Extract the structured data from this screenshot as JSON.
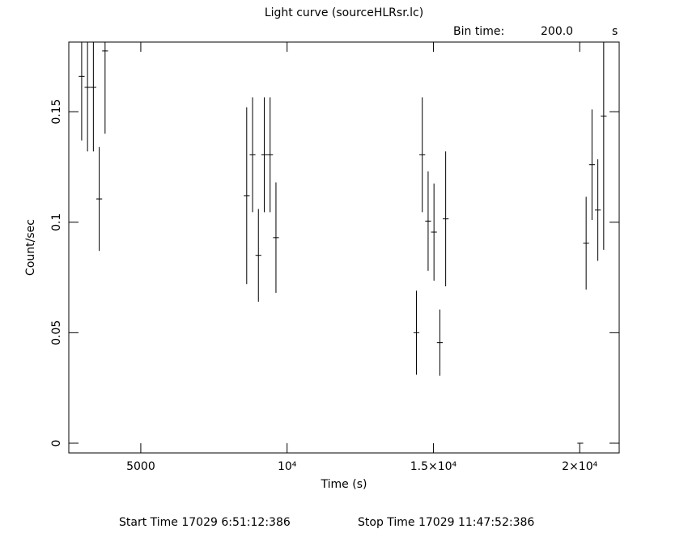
{
  "chart_data": {
    "type": "errorbar",
    "title": "Light curve (sourceHLRsr.lc)",
    "bin_time_label": "Bin time:",
    "bin_time": "200.0",
    "bin_time_unit": "s",
    "x_label": "Time (s)",
    "y_label": "Count/sec",
    "footer_start": "Start Time 17029  6:51:12:386",
    "footer_stop": "Stop Time 17029 11:47:52:386",
    "color": "#000000",
    "x_error": 100,
    "x": [
      2980,
      3180,
      3380,
      3580,
      3780,
      8620,
      8820,
      9020,
      9220,
      9420,
      9620,
      14420,
      14620,
      14820,
      15020,
      15220,
      15420,
      20020,
      20220,
      20420,
      20620,
      20820
    ],
    "values": [
      0.166,
      0.161,
      0.161,
      0.1105,
      0.1775,
      0.112,
      0.1305,
      0.085,
      0.1305,
      0.1305,
      0.093,
      0.05,
      0.1305,
      0.1005,
      0.0955,
      0.0455,
      0.1015,
      0,
      0.0905,
      0.126,
      0.1055,
      0.148
    ],
    "errors": [
      0.029,
      0.029,
      0.029,
      0.0235,
      0.0375,
      0.04,
      0.026,
      0.021,
      0.026,
      0.026,
      0.025,
      0.019,
      0.026,
      0.0225,
      0.022,
      0.015,
      0.0305,
      0,
      0.021,
      0.025,
      0.023,
      0.0605
    ],
    "xlim": [
      2540,
      21350
    ],
    "ylim": [
      -0.0044,
      0.1815
    ],
    "xticks": [
      {
        "value": 5000,
        "label": "5000"
      },
      {
        "value": 10000,
        "label": "10⁴"
      },
      {
        "value": 15000,
        "label": "1.5×10⁴"
      },
      {
        "value": 20000,
        "label": "2×10⁴"
      }
    ],
    "yticks": [
      0,
      0.05,
      0.1,
      0.15
    ]
  }
}
